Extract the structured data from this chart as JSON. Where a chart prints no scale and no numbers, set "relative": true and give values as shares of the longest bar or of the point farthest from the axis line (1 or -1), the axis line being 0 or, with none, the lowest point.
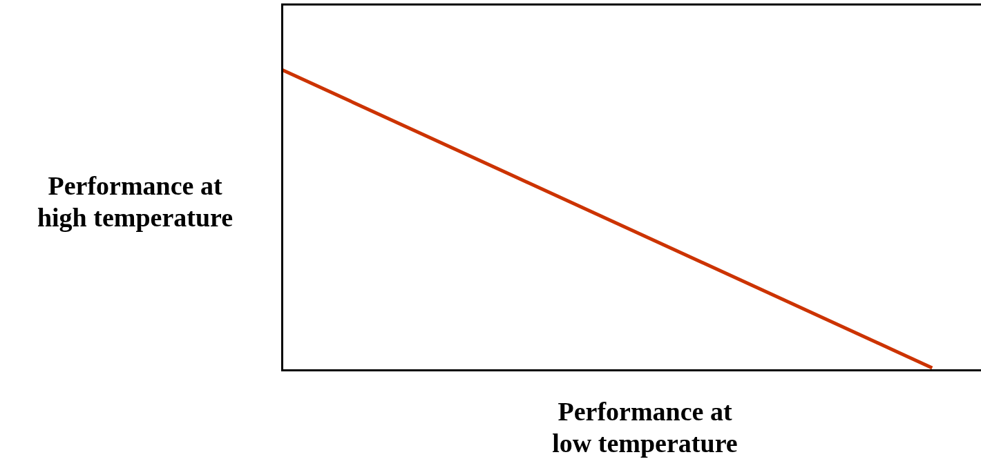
{
  "chart_data": {
    "type": "line",
    "xlabel": "Performance at low temperature",
    "ylabel": "Performance at high temperature",
    "relative": true,
    "categories": [
      null,
      null
    ],
    "series": [
      {
        "color": "#cc3300",
        "values": [
          1,
          0
        ]
      }
    ]
  }
}
